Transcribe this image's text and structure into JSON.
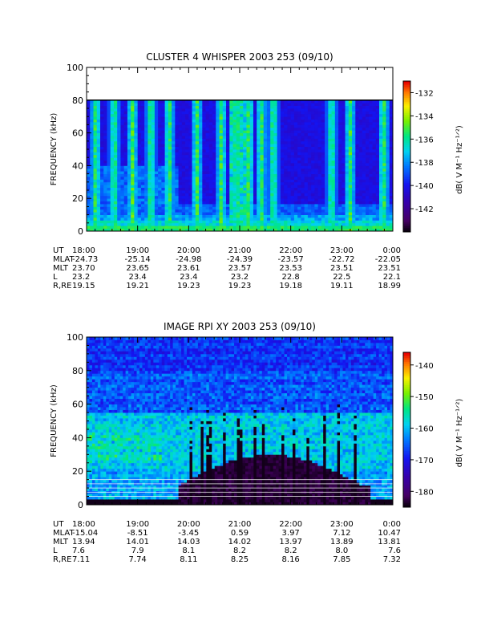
{
  "chart_data": [
    {
      "type": "heatmap",
      "title": "CLUSTER 4 WHISPER 2003 253 (09/10)",
      "ylabel": "FREQUENCY (kHz)",
      "ylim": [
        0,
        100
      ],
      "yticks": [
        "0",
        "20",
        "40",
        "60",
        "80",
        "100"
      ],
      "data_top_khz": 80,
      "colorbar": {
        "label": "dB( V M⁻¹ Hz⁻¹ᐟ²)",
        "range": [
          -144,
          -131
        ],
        "ticks": [
          "-132",
          "-134",
          "-136",
          "-138",
          "-140",
          "-142"
        ],
        "tick_values": [
          -132,
          -134,
          -136,
          -138,
          -140,
          -142
        ]
      },
      "ephemeris": [
        {
          "label": "UT",
          "values": [
            "18:00",
            "19:00",
            "20:00",
            "21:00",
            "22:00",
            "23:00",
            "0:00"
          ]
        },
        {
          "label": "MLAT",
          "values": [
            "-24.73",
            "-25.14",
            "-24.98",
            "-24.39",
            "-23.57",
            "-22.72",
            "-22.05"
          ]
        },
        {
          "label": "MLT",
          "values": [
            "23.70",
            "23.65",
            "23.61",
            "23.57",
            "23.53",
            "23.51",
            "23.51"
          ]
        },
        {
          "label": "L",
          "values": [
            "23.2",
            "23.4",
            "23.4",
            "23.2",
            "22.8",
            "22.5",
            "22.1"
          ]
        },
        {
          "label": "R,RE",
          "values": [
            "19.15",
            "19.21",
            "19.23",
            "19.23",
            "19.18",
            "19.11",
            "18.99"
          ]
        }
      ]
    },
    {
      "type": "heatmap",
      "title": "IMAGE RPI XY 2003 253 (09/10)",
      "ylabel": "FREQUENCY (kHz)",
      "ylim": [
        0,
        100
      ],
      "yticks": [
        "0",
        "20",
        "40",
        "60",
        "80",
        "100"
      ],
      "colorbar": {
        "label": "dB( V M⁻¹ Hz⁻¹ᐟ²)",
        "range": [
          -185,
          -136
        ],
        "ticks": [
          "-140",
          "-150",
          "-160",
          "-170",
          "-180"
        ],
        "tick_values": [
          -140,
          -150,
          -160,
          -170,
          -180
        ]
      },
      "ephemeris": [
        {
          "label": "UT",
          "values": [
            "18:00",
            "19:00",
            "20:00",
            "21:00",
            "22:00",
            "23:00",
            "0:00"
          ]
        },
        {
          "label": "MLAT",
          "values": [
            "-15.04",
            "-8.51",
            "-3.45",
            "0.59",
            "3.97",
            "7.12",
            "10.47"
          ]
        },
        {
          "label": "MLT",
          "values": [
            "13.94",
            "14.01",
            "14.03",
            "14.02",
            "13.97",
            "13.89",
            "13.81"
          ]
        },
        {
          "label": "L",
          "values": [
            "7.6",
            "7.9",
            "8.1",
            "8.2",
            "8.2",
            "8.0",
            "7.6"
          ]
        },
        {
          "label": "R,RE",
          "values": [
            "7.11",
            "7.74",
            "8.11",
            "8.25",
            "8.16",
            "7.85",
            "7.32"
          ]
        }
      ]
    }
  ]
}
